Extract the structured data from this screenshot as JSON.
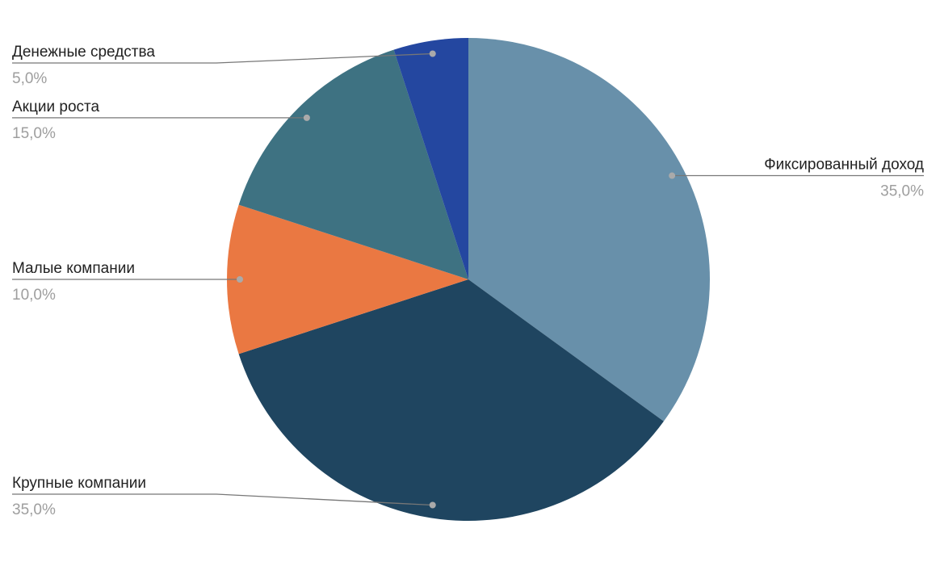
{
  "chart_data": {
    "type": "pie",
    "categories": [
      "Фиксированный доход",
      "Крупные компании",
      "Малые компании",
      "Акции роста",
      "Денежные средства"
    ],
    "values": [
      35,
      35,
      10,
      15,
      5
    ],
    "value_labels": [
      "35,0%",
      "35,0%",
      "10,0%",
      "15,0%",
      "5,0%"
    ],
    "colors": [
      "#6890aa",
      "#1f4560",
      "#ea7842",
      "#3e7282",
      "#2447a0"
    ]
  }
}
